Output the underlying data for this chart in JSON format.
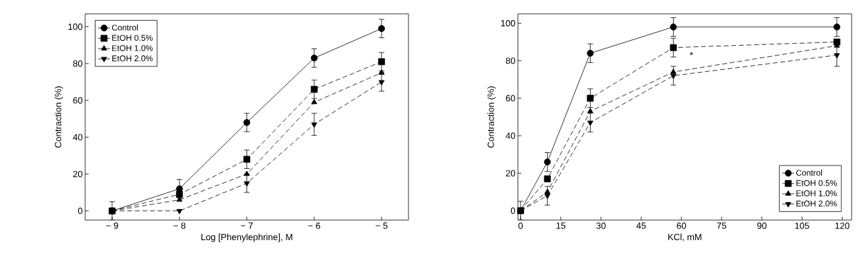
{
  "chart_data": [
    {
      "type": "line",
      "xlabel": "Log  [Phenylephrine],  M",
      "ylabel": "Contraction  (%)",
      "x": [
        -9,
        -8,
        -7,
        -6,
        -5
      ],
      "xlim": [
        -9.4,
        -4.6
      ],
      "ylim": [
        -5,
        107
      ],
      "xticks": [
        {
          "value": -9,
          "label": "− 9"
        },
        {
          "value": -8,
          "label": "− 8"
        },
        {
          "value": -7,
          "label": "− 7"
        },
        {
          "value": -6,
          "label": "− 6"
        },
        {
          "value": -5,
          "label": "− 5"
        }
      ],
      "yticks": [
        0,
        20,
        40,
        60,
        80,
        100
      ],
      "legend": "top left",
      "grid": false,
      "series": [
        {
          "name": "Control",
          "color": "#000000",
          "marker": "circle",
          "line_style": "solid",
          "values": [
            0,
            12,
            48,
            83,
            99
          ],
          "errors": [
            5,
            5,
            5,
            5,
            5
          ]
        },
        {
          "name": "EtOH  0.5%",
          "color": "#000000",
          "marker": "square",
          "line_style": "dashed",
          "values": [
            0,
            9,
            28,
            66,
            81
          ],
          "errors": [
            null,
            null,
            5,
            5,
            5
          ]
        },
        {
          "name": "EtOH  1.0%",
          "color": "#000000",
          "marker": "triangle",
          "line_style": "dashed",
          "values": [
            0,
            6,
            20,
            59,
            75
          ]
        },
        {
          "name": "EtOH  2.0%",
          "color": "#000000",
          "marker": "triangle-down",
          "line_style": "dashed",
          "values": [
            0,
            0,
            15,
            47,
            70
          ],
          "errors": [
            null,
            null,
            5,
            6,
            5
          ]
        }
      ]
    },
    {
      "type": "line",
      "xlabel": "KCl,  mM",
      "ylabel": "Contraction  (%)",
      "x": [
        0,
        10,
        26,
        57,
        118
      ],
      "xlim": [
        -1,
        123.5
      ],
      "ylim": [
        -5,
        105
      ],
      "xticks": [
        0,
        15,
        30,
        45,
        60,
        75,
        90,
        105,
        120
      ],
      "yticks": [
        0,
        20,
        40,
        60,
        80,
        100
      ],
      "legend": "bottom right",
      "grid": false,
      "annotations": [
        "*"
      ],
      "series": [
        {
          "name": "Control",
          "color": "#000000",
          "marker": "circle",
          "line_style": "solid",
          "values": [
            0,
            26,
            84,
            98,
            98
          ],
          "errors": [
            5,
            5,
            5,
            5,
            5
          ]
        },
        {
          "name": "EtOH  0.5%",
          "color": "#000000",
          "marker": "square",
          "line_style": "dashed",
          "values": [
            0,
            17,
            60,
            87,
            90
          ],
          "errors": [
            null,
            null,
            5,
            5,
            null
          ]
        },
        {
          "name": "EtOH  1.0%",
          "color": "#000000",
          "marker": "triangle",
          "line_style": "dashed",
          "values": [
            0,
            10,
            53,
            74,
            88
          ]
        },
        {
          "name": "EtOH  2.0%",
          "color": "#000000",
          "marker": "triangle-down",
          "line_style": "dashed",
          "values": [
            0,
            8,
            47,
            72,
            83
          ],
          "errors": [
            null,
            5,
            5,
            5,
            6
          ]
        }
      ]
    }
  ]
}
